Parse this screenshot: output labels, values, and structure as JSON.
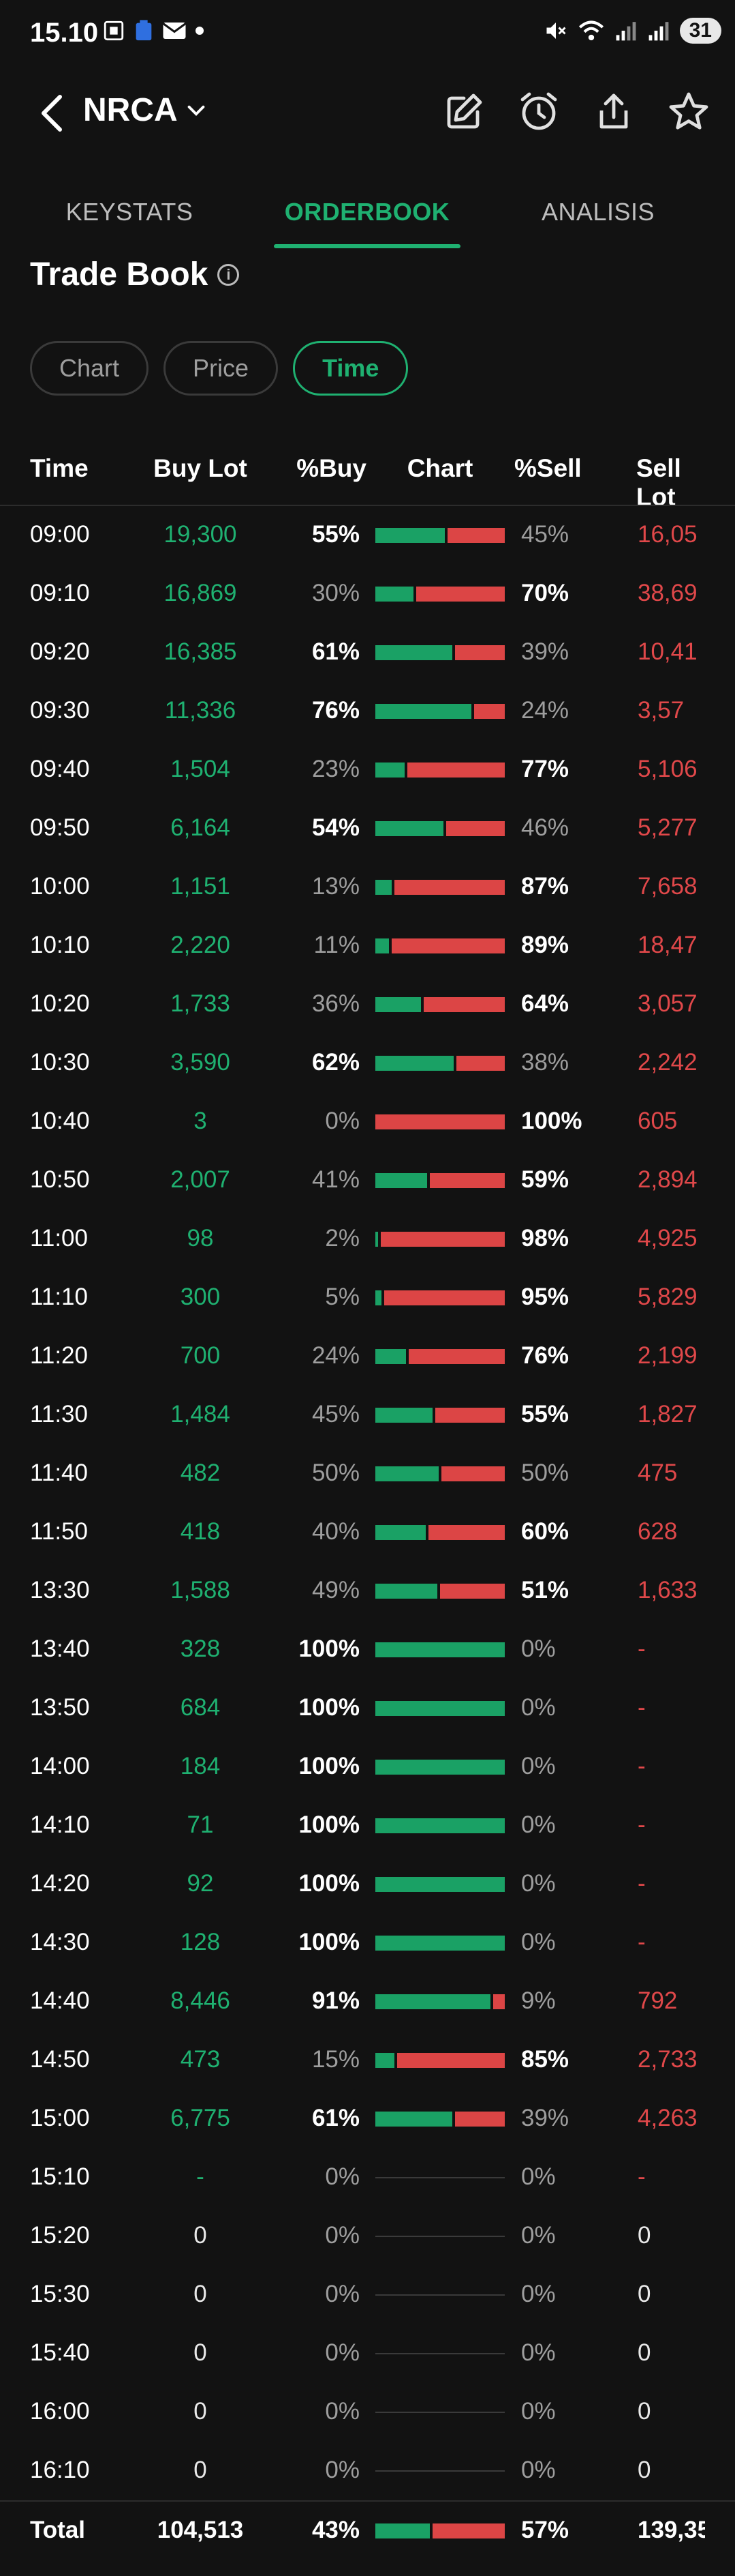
{
  "status_bar": {
    "time": "15.10",
    "battery": "31"
  },
  "header": {
    "ticker": "NRCA"
  },
  "tabs": [
    {
      "label": "KEYSTATS"
    },
    {
      "label": "ORDERBOOK"
    },
    {
      "label": "ANALISIS"
    }
  ],
  "section": {
    "title": "Trade Book",
    "info_icon": "i"
  },
  "filters": [
    {
      "label": "Chart"
    },
    {
      "label": "Price"
    },
    {
      "label": "Time"
    }
  ],
  "table": {
    "headers": {
      "time": "Time",
      "buy_lot": "Buy Lot",
      "pct_buy": "%Buy",
      "chart": "Chart",
      "pct_sell": "%Sell",
      "sell_lot": "Sell Lot"
    },
    "rows": [
      {
        "time": "09:00",
        "buy_lot": "19,300",
        "pct_buy": "55%",
        "pct_sell": "45%",
        "sell_lot": "16,05",
        "buy_frac": 0.55
      },
      {
        "time": "09:10",
        "buy_lot": "16,869",
        "pct_buy": "30%",
        "pct_sell": "70%",
        "sell_lot": "38,69",
        "buy_frac": 0.3
      },
      {
        "time": "09:20",
        "buy_lot": "16,385",
        "pct_buy": "61%",
        "pct_sell": "39%",
        "sell_lot": "10,41",
        "buy_frac": 0.61
      },
      {
        "time": "09:30",
        "buy_lot": "11,336",
        "pct_buy": "76%",
        "pct_sell": "24%",
        "sell_lot": "3,57",
        "buy_frac": 0.76
      },
      {
        "time": "09:40",
        "buy_lot": "1,504",
        "pct_buy": "23%",
        "pct_sell": "77%",
        "sell_lot": "5,106",
        "buy_frac": 0.23
      },
      {
        "time": "09:50",
        "buy_lot": "6,164",
        "pct_buy": "54%",
        "pct_sell": "46%",
        "sell_lot": "5,277",
        "buy_frac": 0.54
      },
      {
        "time": "10:00",
        "buy_lot": "1,151",
        "pct_buy": "13%",
        "pct_sell": "87%",
        "sell_lot": "7,658",
        "buy_frac": 0.13
      },
      {
        "time": "10:10",
        "buy_lot": "2,220",
        "pct_buy": "11%",
        "pct_sell": "89%",
        "sell_lot": "18,47",
        "buy_frac": 0.11
      },
      {
        "time": "10:20",
        "buy_lot": "1,733",
        "pct_buy": "36%",
        "pct_sell": "64%",
        "sell_lot": "3,057",
        "buy_frac": 0.36
      },
      {
        "time": "10:30",
        "buy_lot": "3,590",
        "pct_buy": "62%",
        "pct_sell": "38%",
        "sell_lot": "2,242",
        "buy_frac": 0.62
      },
      {
        "time": "10:40",
        "buy_lot": "3",
        "pct_buy": "0%",
        "pct_sell": "100%",
        "sell_lot": "605",
        "buy_frac": 0.0
      },
      {
        "time": "10:50",
        "buy_lot": "2,007",
        "pct_buy": "41%",
        "pct_sell": "59%",
        "sell_lot": "2,894",
        "buy_frac": 0.41
      },
      {
        "time": "11:00",
        "buy_lot": "98",
        "pct_buy": "2%",
        "pct_sell": "98%",
        "sell_lot": "4,925",
        "buy_frac": 0.02
      },
      {
        "time": "11:10",
        "buy_lot": "300",
        "pct_buy": "5%",
        "pct_sell": "95%",
        "sell_lot": "5,829",
        "buy_frac": 0.05
      },
      {
        "time": "11:20",
        "buy_lot": "700",
        "pct_buy": "24%",
        "pct_sell": "76%",
        "sell_lot": "2,199",
        "buy_frac": 0.24
      },
      {
        "time": "11:30",
        "buy_lot": "1,484",
        "pct_buy": "45%",
        "pct_sell": "55%",
        "sell_lot": "1,827",
        "buy_frac": 0.45
      },
      {
        "time": "11:40",
        "buy_lot": "482",
        "pct_buy": "50%",
        "pct_sell": "50%",
        "sell_lot": "475",
        "buy_frac": 0.5
      },
      {
        "time": "11:50",
        "buy_lot": "418",
        "pct_buy": "40%",
        "pct_sell": "60%",
        "sell_lot": "628",
        "buy_frac": 0.4
      },
      {
        "time": "13:30",
        "buy_lot": "1,588",
        "pct_buy": "49%",
        "pct_sell": "51%",
        "sell_lot": "1,633",
        "buy_frac": 0.49
      },
      {
        "time": "13:40",
        "buy_lot": "328",
        "pct_buy": "100%",
        "pct_sell": "0%",
        "sell_lot": "-",
        "buy_frac": 1.0
      },
      {
        "time": "13:50",
        "buy_lot": "684",
        "pct_buy": "100%",
        "pct_sell": "0%",
        "sell_lot": "-",
        "buy_frac": 1.0
      },
      {
        "time": "14:00",
        "buy_lot": "184",
        "pct_buy": "100%",
        "pct_sell": "0%",
        "sell_lot": "-",
        "buy_frac": 1.0
      },
      {
        "time": "14:10",
        "buy_lot": "71",
        "pct_buy": "100%",
        "pct_sell": "0%",
        "sell_lot": "-",
        "buy_frac": 1.0
      },
      {
        "time": "14:20",
        "buy_lot": "92",
        "pct_buy": "100%",
        "pct_sell": "0%",
        "sell_lot": "-",
        "buy_frac": 1.0
      },
      {
        "time": "14:30",
        "buy_lot": "128",
        "pct_buy": "100%",
        "pct_sell": "0%",
        "sell_lot": "-",
        "buy_frac": 1.0
      },
      {
        "time": "14:40",
        "buy_lot": "8,446",
        "pct_buy": "91%",
        "pct_sell": "9%",
        "sell_lot": "792",
        "buy_frac": 0.91
      },
      {
        "time": "14:50",
        "buy_lot": "473",
        "pct_buy": "15%",
        "pct_sell": "85%",
        "sell_lot": "2,733",
        "buy_frac": 0.15
      },
      {
        "time": "15:00",
        "buy_lot": "6,775",
        "pct_buy": "61%",
        "pct_sell": "39%",
        "sell_lot": "4,263",
        "buy_frac": 0.61
      },
      {
        "time": "15:10",
        "buy_lot": "-",
        "pct_buy": "0%",
        "pct_sell": "0%",
        "sell_lot": "-",
        "buy_frac": null
      },
      {
        "time": "15:20",
        "buy_lot": "0",
        "pct_buy": "0%",
        "pct_sell": "0%",
        "sell_lot": "0",
        "buy_frac": null
      },
      {
        "time": "15:30",
        "buy_lot": "0",
        "pct_buy": "0%",
        "pct_sell": "0%",
        "sell_lot": "0",
        "buy_frac": null
      },
      {
        "time": "15:40",
        "buy_lot": "0",
        "pct_buy": "0%",
        "pct_sell": "0%",
        "sell_lot": "0",
        "buy_frac": null
      },
      {
        "time": "16:00",
        "buy_lot": "0",
        "pct_buy": "0%",
        "pct_sell": "0%",
        "sell_lot": "0",
        "buy_frac": null
      },
      {
        "time": "16:10",
        "buy_lot": "0",
        "pct_buy": "0%",
        "pct_sell": "0%",
        "sell_lot": "0",
        "buy_frac": null
      }
    ],
    "total": {
      "label": "Total",
      "buy_lot": "104,513",
      "pct_buy": "43%",
      "pct_sell": "57%",
      "sell_lot": "139,35",
      "buy_frac": 0.43
    }
  },
  "colors": {
    "buy": "#1aa165",
    "sell": "#dc4545",
    "accent": "#1fb171",
    "background": "#121212"
  }
}
